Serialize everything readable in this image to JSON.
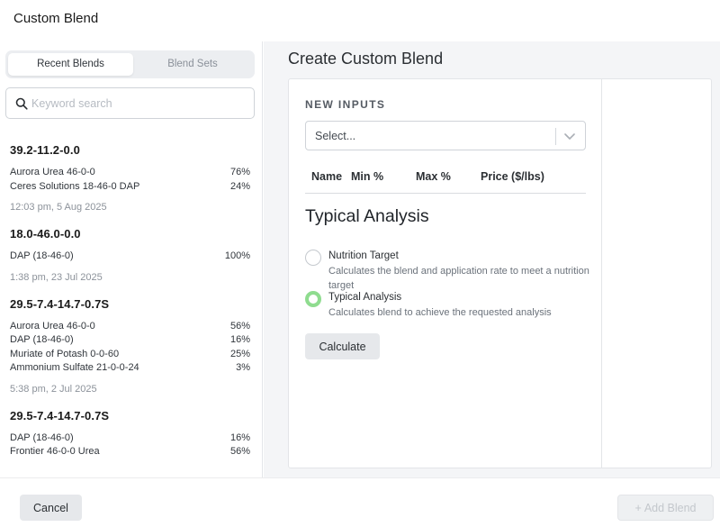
{
  "window": {
    "title": "Custom Blend"
  },
  "sidebar": {
    "tabs": [
      {
        "label": "Recent Blends",
        "active": true
      },
      {
        "label": "Blend Sets",
        "active": false
      }
    ],
    "search": {
      "placeholder": "Keyword search",
      "value": ""
    },
    "blends": [
      {
        "name": "39.2-11.2-0.0",
        "ingredients": [
          {
            "name": "Aurora Urea 46-0-0",
            "pct": "76%"
          },
          {
            "name": "Ceres Solutions 18-46-0 DAP",
            "pct": "24%"
          }
        ],
        "date": "12:03 pm, 5 Aug 2025"
      },
      {
        "name": "18.0-46.0-0.0",
        "ingredients": [
          {
            "name": "DAP (18-46-0)",
            "pct": "100%"
          }
        ],
        "date": "1:38 pm, 23 Jul 2025"
      },
      {
        "name": "29.5-7.4-14.7-0.7S",
        "ingredients": [
          {
            "name": "Aurora Urea 46-0-0",
            "pct": "56%"
          },
          {
            "name": "DAP (18-46-0)",
            "pct": "16%"
          },
          {
            "name": "Muriate of Potash 0-0-60",
            "pct": "25%"
          },
          {
            "name": "Ammonium Sulfate 21-0-0-24",
            "pct": "3%"
          }
        ],
        "date": "5:38 pm, 2 Jul 2025"
      },
      {
        "name": "29.5-7.4-14.7-0.7S",
        "ingredients": [
          {
            "name": "DAP (18-46-0)",
            "pct": "16%"
          },
          {
            "name": "Frontier 46-0-0 Urea",
            "pct": "56%"
          }
        ],
        "date": ""
      }
    ]
  },
  "main": {
    "title": "Create Custom Blend",
    "new_inputs_label": "NEW INPUTS",
    "select_placeholder": "Select...",
    "columns": [
      "Name",
      "Min %",
      "Max %",
      "Price ($/lbs)"
    ],
    "section_title": "Typical Analysis",
    "options": [
      {
        "label": "Nutrition Target",
        "description": "Calculates the blend and application rate to meet a nutrition target",
        "checked": false
      },
      {
        "label": "Typical Analysis",
        "description": "Calculates blend to achieve the requested analysis",
        "checked": true
      }
    ],
    "calculate_label": "Calculate"
  },
  "footer": {
    "cancel_label": "Cancel",
    "add_label": "Add Blend",
    "add_icon": "plus-icon"
  },
  "colors": {
    "radio_checked": "#8fdc8f",
    "button_bg": "#e6e8eb",
    "panel_bg": "#f4f5f7"
  }
}
